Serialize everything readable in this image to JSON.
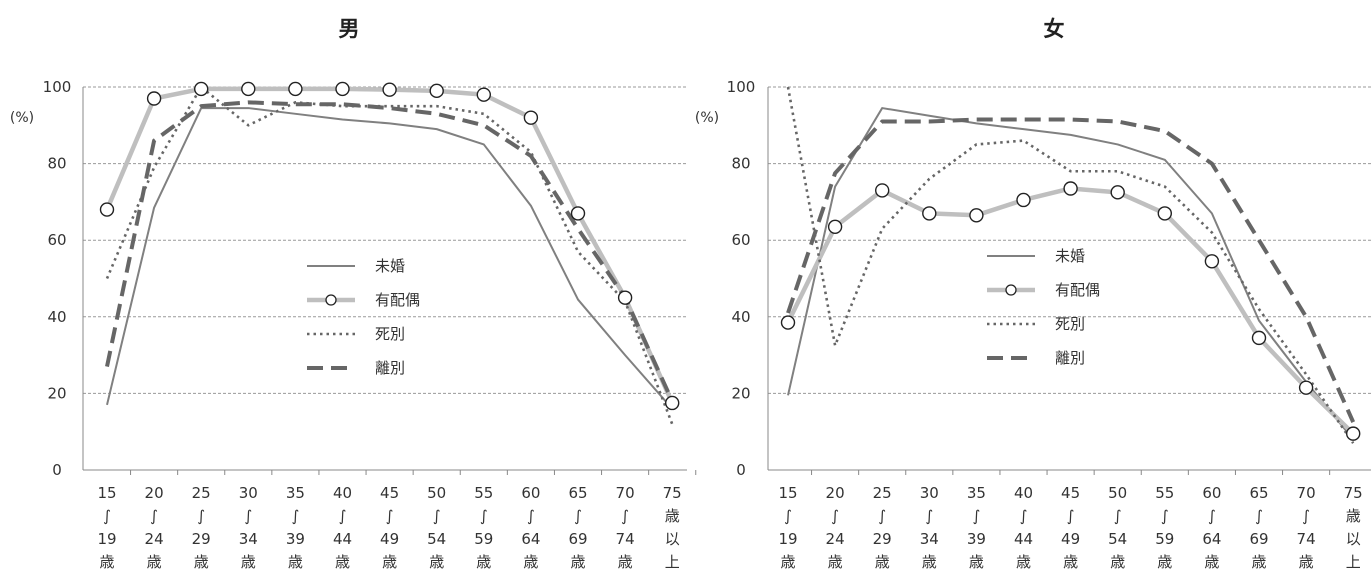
{
  "chart_data": [
    {
      "type": "line",
      "title": "男",
      "ylabel": "(%)",
      "ylim": [
        0,
        100
      ],
      "yticks": [
        "0",
        "20",
        "40",
        "60",
        "80",
        "100"
      ],
      "grid": true,
      "legend_position": "center-right",
      "categories": [
        [
          "15",
          "∫",
          "19",
          "歳"
        ],
        [
          "20",
          "∫",
          "24",
          "歳"
        ],
        [
          "25",
          "∫",
          "29",
          "歳"
        ],
        [
          "30",
          "∫",
          "34",
          "歳"
        ],
        [
          "35",
          "∫",
          "39",
          "歳"
        ],
        [
          "40",
          "∫",
          "44",
          "歳"
        ],
        [
          "45",
          "∫",
          "49",
          "歳"
        ],
        [
          "50",
          "∫",
          "54",
          "歳"
        ],
        [
          "55",
          "∫",
          "59",
          "歳"
        ],
        [
          "60",
          "∫",
          "64",
          "歳"
        ],
        [
          "65",
          "∫",
          "69",
          "歳"
        ],
        [
          "70",
          "∫",
          "74",
          "歳"
        ],
        [
          "75",
          "歳",
          "以",
          "上"
        ]
      ],
      "series": [
        {
          "name": "未婚",
          "style": "solid-thin",
          "color": "#808080",
          "values": [
            17,
            68.5,
            94.5,
            94.5,
            93,
            91.5,
            90.5,
            89,
            85,
            69,
            44.5,
            30,
            16
          ]
        },
        {
          "name": "有配偶",
          "style": "thick-light-markers",
          "color": "#bfbfbf",
          "values": [
            68,
            97,
            99.5,
            99.5,
            99.5,
            99.5,
            99.3,
            99,
            98,
            92,
            67,
            45,
            17.5
          ]
        },
        {
          "name": "死別",
          "style": "dotted",
          "color": "#666666",
          "values": [
            50,
            79,
            100,
            90,
            96,
            95,
            95,
            95,
            93,
            83,
            57,
            44,
            12
          ]
        },
        {
          "name": "離別",
          "style": "dashed",
          "color": "#666666",
          "values": [
            27,
            86,
            95,
            96,
            95.5,
            95.5,
            94.5,
            93,
            90,
            82,
            63,
            45,
            18
          ]
        }
      ]
    },
    {
      "type": "line",
      "title": "女",
      "ylabel": "(%)",
      "ylim": [
        0,
        100
      ],
      "yticks": [
        "0",
        "20",
        "40",
        "60",
        "80",
        "100"
      ],
      "grid": true,
      "legend_position": "center-right",
      "categories": [
        [
          "15",
          "∫",
          "19",
          "歳"
        ],
        [
          "20",
          "∫",
          "24",
          "歳"
        ],
        [
          "25",
          "∫",
          "29",
          "歳"
        ],
        [
          "30",
          "∫",
          "34",
          "歳"
        ],
        [
          "35",
          "∫",
          "39",
          "歳"
        ],
        [
          "40",
          "∫",
          "44",
          "歳"
        ],
        [
          "45",
          "∫",
          "49",
          "歳"
        ],
        [
          "50",
          "∫",
          "54",
          "歳"
        ],
        [
          "55",
          "∫",
          "59",
          "歳"
        ],
        [
          "60",
          "∫",
          "64",
          "歳"
        ],
        [
          "65",
          "∫",
          "69",
          "歳"
        ],
        [
          "70",
          "∫",
          "74",
          "歳"
        ],
        [
          "75",
          "歳",
          "以",
          "上"
        ]
      ],
      "series": [
        {
          "name": "未婚",
          "style": "solid-thin",
          "color": "#808080",
          "values": [
            19.5,
            74,
            94.5,
            92.5,
            90.5,
            89,
            87.5,
            85,
            81,
            67,
            39,
            23,
            8
          ]
        },
        {
          "name": "有配偶",
          "style": "thick-light-markers",
          "color": "#bfbfbf",
          "values": [
            38.5,
            63.5,
            73,
            67,
            66.5,
            70.5,
            73.5,
            72.5,
            67,
            54.5,
            34.5,
            21.5,
            9.5
          ]
        },
        {
          "name": "死別",
          "style": "dotted",
          "color": "#666666",
          "values": [
            100,
            32.5,
            63,
            76,
            85,
            86,
            78,
            78,
            74,
            62,
            42,
            25,
            7
          ]
        },
        {
          "name": "離別",
          "style": "dashed",
          "color": "#666666",
          "values": [
            41,
            77.5,
            91,
            91,
            91.5,
            91.5,
            91.5,
            91,
            88.5,
            80,
            60,
            40,
            12.5
          ]
        }
      ]
    }
  ]
}
